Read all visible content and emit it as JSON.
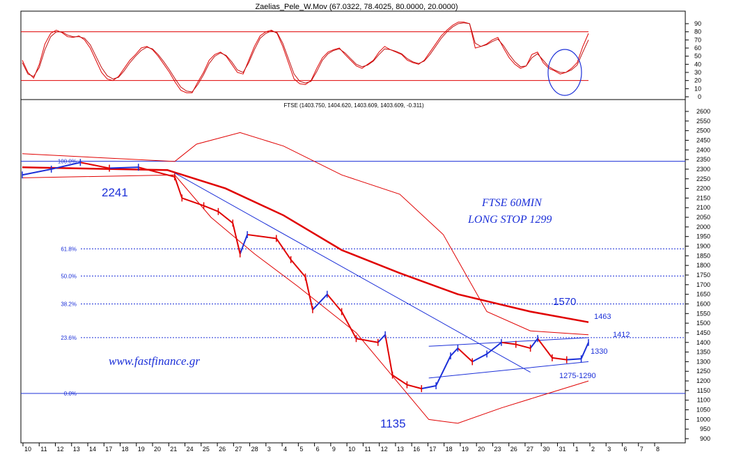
{
  "chart_data": [
    {
      "type": "line",
      "title": "Zaelias_Pele_W.Mov (67.0322, 78.4025, 80.0000, 20.0000)",
      "ylim": [
        0,
        90
      ],
      "yticks": [
        0,
        10,
        20,
        30,
        40,
        50,
        60,
        70,
        80,
        90
      ],
      "levels": [
        80,
        20
      ],
      "highlight": "ellipse-around-latest-turn",
      "series": [
        {
          "values": [
            45,
            30,
            23,
            40,
            65,
            78,
            82,
            79,
            74,
            73,
            75,
            70,
            60,
            45,
            30,
            22,
            20,
            25,
            35,
            45,
            52,
            60,
            62,
            58,
            50,
            40,
            30,
            18,
            8,
            5,
            5,
            18,
            30,
            45,
            52,
            55,
            50,
            40,
            30,
            28,
            45,
            62,
            75,
            80,
            82,
            78,
            62,
            42,
            22,
            16,
            15,
            20,
            35,
            48,
            55,
            58,
            60,
            52,
            45,
            38,
            35,
            40,
            45,
            55,
            62,
            58,
            55,
            52,
            45,
            42,
            40,
            45,
            55,
            65,
            75,
            82,
            88,
            92,
            92,
            90,
            60,
            62,
            65,
            70,
            73,
            60,
            48,
            40,
            35,
            38,
            52,
            55,
            42,
            35,
            32,
            28,
            30,
            35,
            42,
            62,
            78
          ]
        },
        {
          "values": [
            42,
            28,
            25,
            36,
            58,
            74,
            80,
            80,
            76,
            74,
            74,
            72,
            64,
            50,
            36,
            26,
            22,
            24,
            32,
            42,
            50,
            57,
            61,
            59,
            52,
            43,
            33,
            22,
            12,
            7,
            6,
            15,
            27,
            41,
            50,
            54,
            51,
            43,
            33,
            30,
            42,
            58,
            72,
            78,
            81,
            79,
            66,
            47,
            28,
            19,
            17,
            19,
            31,
            45,
            53,
            57,
            59,
            54,
            47,
            40,
            37,
            39,
            44,
            52,
            59,
            58,
            56,
            53,
            47,
            43,
            41,
            44,
            52,
            62,
            72,
            80,
            86,
            90,
            91,
            90,
            66,
            62,
            64,
            68,
            71,
            63,
            52,
            43,
            37,
            38,
            48,
            53,
            45,
            37,
            33,
            30,
            30,
            33,
            39,
            55,
            70
          ]
        }
      ]
    },
    {
      "type": "line",
      "title": "FTSE (1403.750, 1404.620, 1403.609, 1403.609, -0.311)",
      "ylim": [
        900,
        2600
      ],
      "yticks": [
        900,
        950,
        1000,
        1050,
        1100,
        1150,
        1200,
        1250,
        1300,
        1350,
        1400,
        1450,
        1500,
        1550,
        1600,
        1650,
        1700,
        1750,
        1800,
        1850,
        1900,
        1950,
        2000,
        2050,
        2100,
        2150,
        2200,
        2250,
        2300,
        2350,
        2400,
        2450,
        2500,
        2550,
        2600
      ],
      "fib_levels": [
        {
          "label": "100.0%",
          "value": 2341
        },
        {
          "label": "61.8%",
          "value": 1886
        },
        {
          "label": "50.0%",
          "value": 1745
        },
        {
          "label": "38.2%",
          "value": 1600
        },
        {
          "label": "23.6%",
          "value": 1425
        },
        {
          "label": "0.0%",
          "value": 1135
        }
      ],
      "x_tick_labels": [
        "10",
        "11",
        "12",
        "13",
        "14",
        "17",
        "18",
        "19",
        "20",
        "21",
        "24",
        "25",
        "26",
        "27",
        "28",
        "3",
        "4",
        "5",
        "6",
        "9",
        "10",
        "11",
        "12",
        "13",
        "16",
        "17",
        "18",
        "19",
        "20",
        "23",
        "26",
        "27",
        "30",
        "31",
        "1",
        "2",
        "3",
        "6",
        "7",
        "8"
      ],
      "price": [
        {
          "bar": 0,
          "value": 2270
        },
        {
          "bar": 4,
          "value": 2300
        },
        {
          "bar": 8,
          "value": 2335
        },
        {
          "bar": 12,
          "value": 2305
        },
        {
          "bar": 16,
          "value": 2310
        },
        {
          "bar": 21,
          "value": 2260
        },
        {
          "bar": 22,
          "value": 2150
        },
        {
          "bar": 25,
          "value": 2110
        },
        {
          "bar": 27,
          "value": 2080
        },
        {
          "bar": 29,
          "value": 2020
        },
        {
          "bar": 30,
          "value": 1860
        },
        {
          "bar": 31,
          "value": 1960
        },
        {
          "bar": 35,
          "value": 1940
        },
        {
          "bar": 37,
          "value": 1830
        },
        {
          "bar": 39,
          "value": 1740
        },
        {
          "bar": 40,
          "value": 1570
        },
        {
          "bar": 42,
          "value": 1650
        },
        {
          "bar": 44,
          "value": 1560
        },
        {
          "bar": 46,
          "value": 1420
        },
        {
          "bar": 49,
          "value": 1400
        },
        {
          "bar": 50,
          "value": 1440
        },
        {
          "bar": 51,
          "value": 1230
        },
        {
          "bar": 53,
          "value": 1180
        },
        {
          "bar": 55,
          "value": 1160
        },
        {
          "bar": 57,
          "value": 1175
        },
        {
          "bar": 59,
          "value": 1330
        },
        {
          "bar": 60,
          "value": 1370
        },
        {
          "bar": 62,
          "value": 1300
        },
        {
          "bar": 64,
          "value": 1340
        },
        {
          "bar": 66,
          "value": 1400
        },
        {
          "bar": 68,
          "value": 1390
        },
        {
          "bar": 70,
          "value": 1370
        },
        {
          "bar": 71,
          "value": 1420
        },
        {
          "bar": 73,
          "value": 1320
        },
        {
          "bar": 75,
          "value": 1310
        },
        {
          "bar": 77,
          "value": 1315
        },
        {
          "bar": 78,
          "value": 1400
        }
      ],
      "moving_average": [
        {
          "bar": 0,
          "value": 2310
        },
        {
          "bar": 20,
          "value": 2295
        },
        {
          "bar": 28,
          "value": 2200
        },
        {
          "bar": 36,
          "value": 2060
        },
        {
          "bar": 44,
          "value": 1880
        },
        {
          "bar": 52,
          "value": 1760
        },
        {
          "bar": 60,
          "value": 1650
        },
        {
          "bar": 70,
          "value": 1560
        },
        {
          "bar": 78,
          "value": 1505
        }
      ],
      "bollinger_upper": [
        {
          "bar": 0,
          "value": 2380
        },
        {
          "bar": 21,
          "value": 2340
        },
        {
          "bar": 24,
          "value": 2430
        },
        {
          "bar": 30,
          "value": 2490
        },
        {
          "bar": 36,
          "value": 2420
        },
        {
          "bar": 44,
          "value": 2270
        },
        {
          "bar": 52,
          "value": 2170
        },
        {
          "bar": 58,
          "value": 1960
        },
        {
          "bar": 64,
          "value": 1560
        },
        {
          "bar": 70,
          "value": 1460
        },
        {
          "bar": 78,
          "value": 1440
        }
      ],
      "bollinger_lower": [
        {
          "bar": 0,
          "value": 2255
        },
        {
          "bar": 21,
          "value": 2270
        },
        {
          "bar": 26,
          "value": 2050
        },
        {
          "bar": 32,
          "value": 1860
        },
        {
          "bar": 38,
          "value": 1690
        },
        {
          "bar": 46,
          "value": 1450
        },
        {
          "bar": 52,
          "value": 1180
        },
        {
          "bar": 56,
          "value": 1000
        },
        {
          "bar": 60,
          "value": 980
        },
        {
          "bar": 66,
          "value": 1060
        },
        {
          "bar": 72,
          "value": 1130
        },
        {
          "bar": 78,
          "value": 1200
        }
      ],
      "trendlines": [
        {
          "from": {
            "bar": 21,
            "value": 2280
          },
          "to": {
            "bar": 70,
            "value": 1245
          }
        },
        {
          "from": {
            "bar": 56,
            "value": 1380
          },
          "to": {
            "bar": 78,
            "value": 1425
          }
        },
        {
          "from": {
            "bar": 56,
            "value": 1215
          },
          "to": {
            "bar": 78,
            "value": 1300
          }
        }
      ],
      "annotations": [
        "2241",
        "1135",
        "1570",
        "1463",
        "1412",
        "1330",
        "1275-1290"
      ],
      "watermark_lines": [
        "FTSE 60MIN",
        "LONG STOP 1299"
      ],
      "url": "www.fastfinance.gr"
    }
  ],
  "colors": {
    "price_up": "#1b2fd8",
    "price_down": "#e00000",
    "ma": "#e00000",
    "bands": "#e00000",
    "lines": "#1b2fd8"
  }
}
